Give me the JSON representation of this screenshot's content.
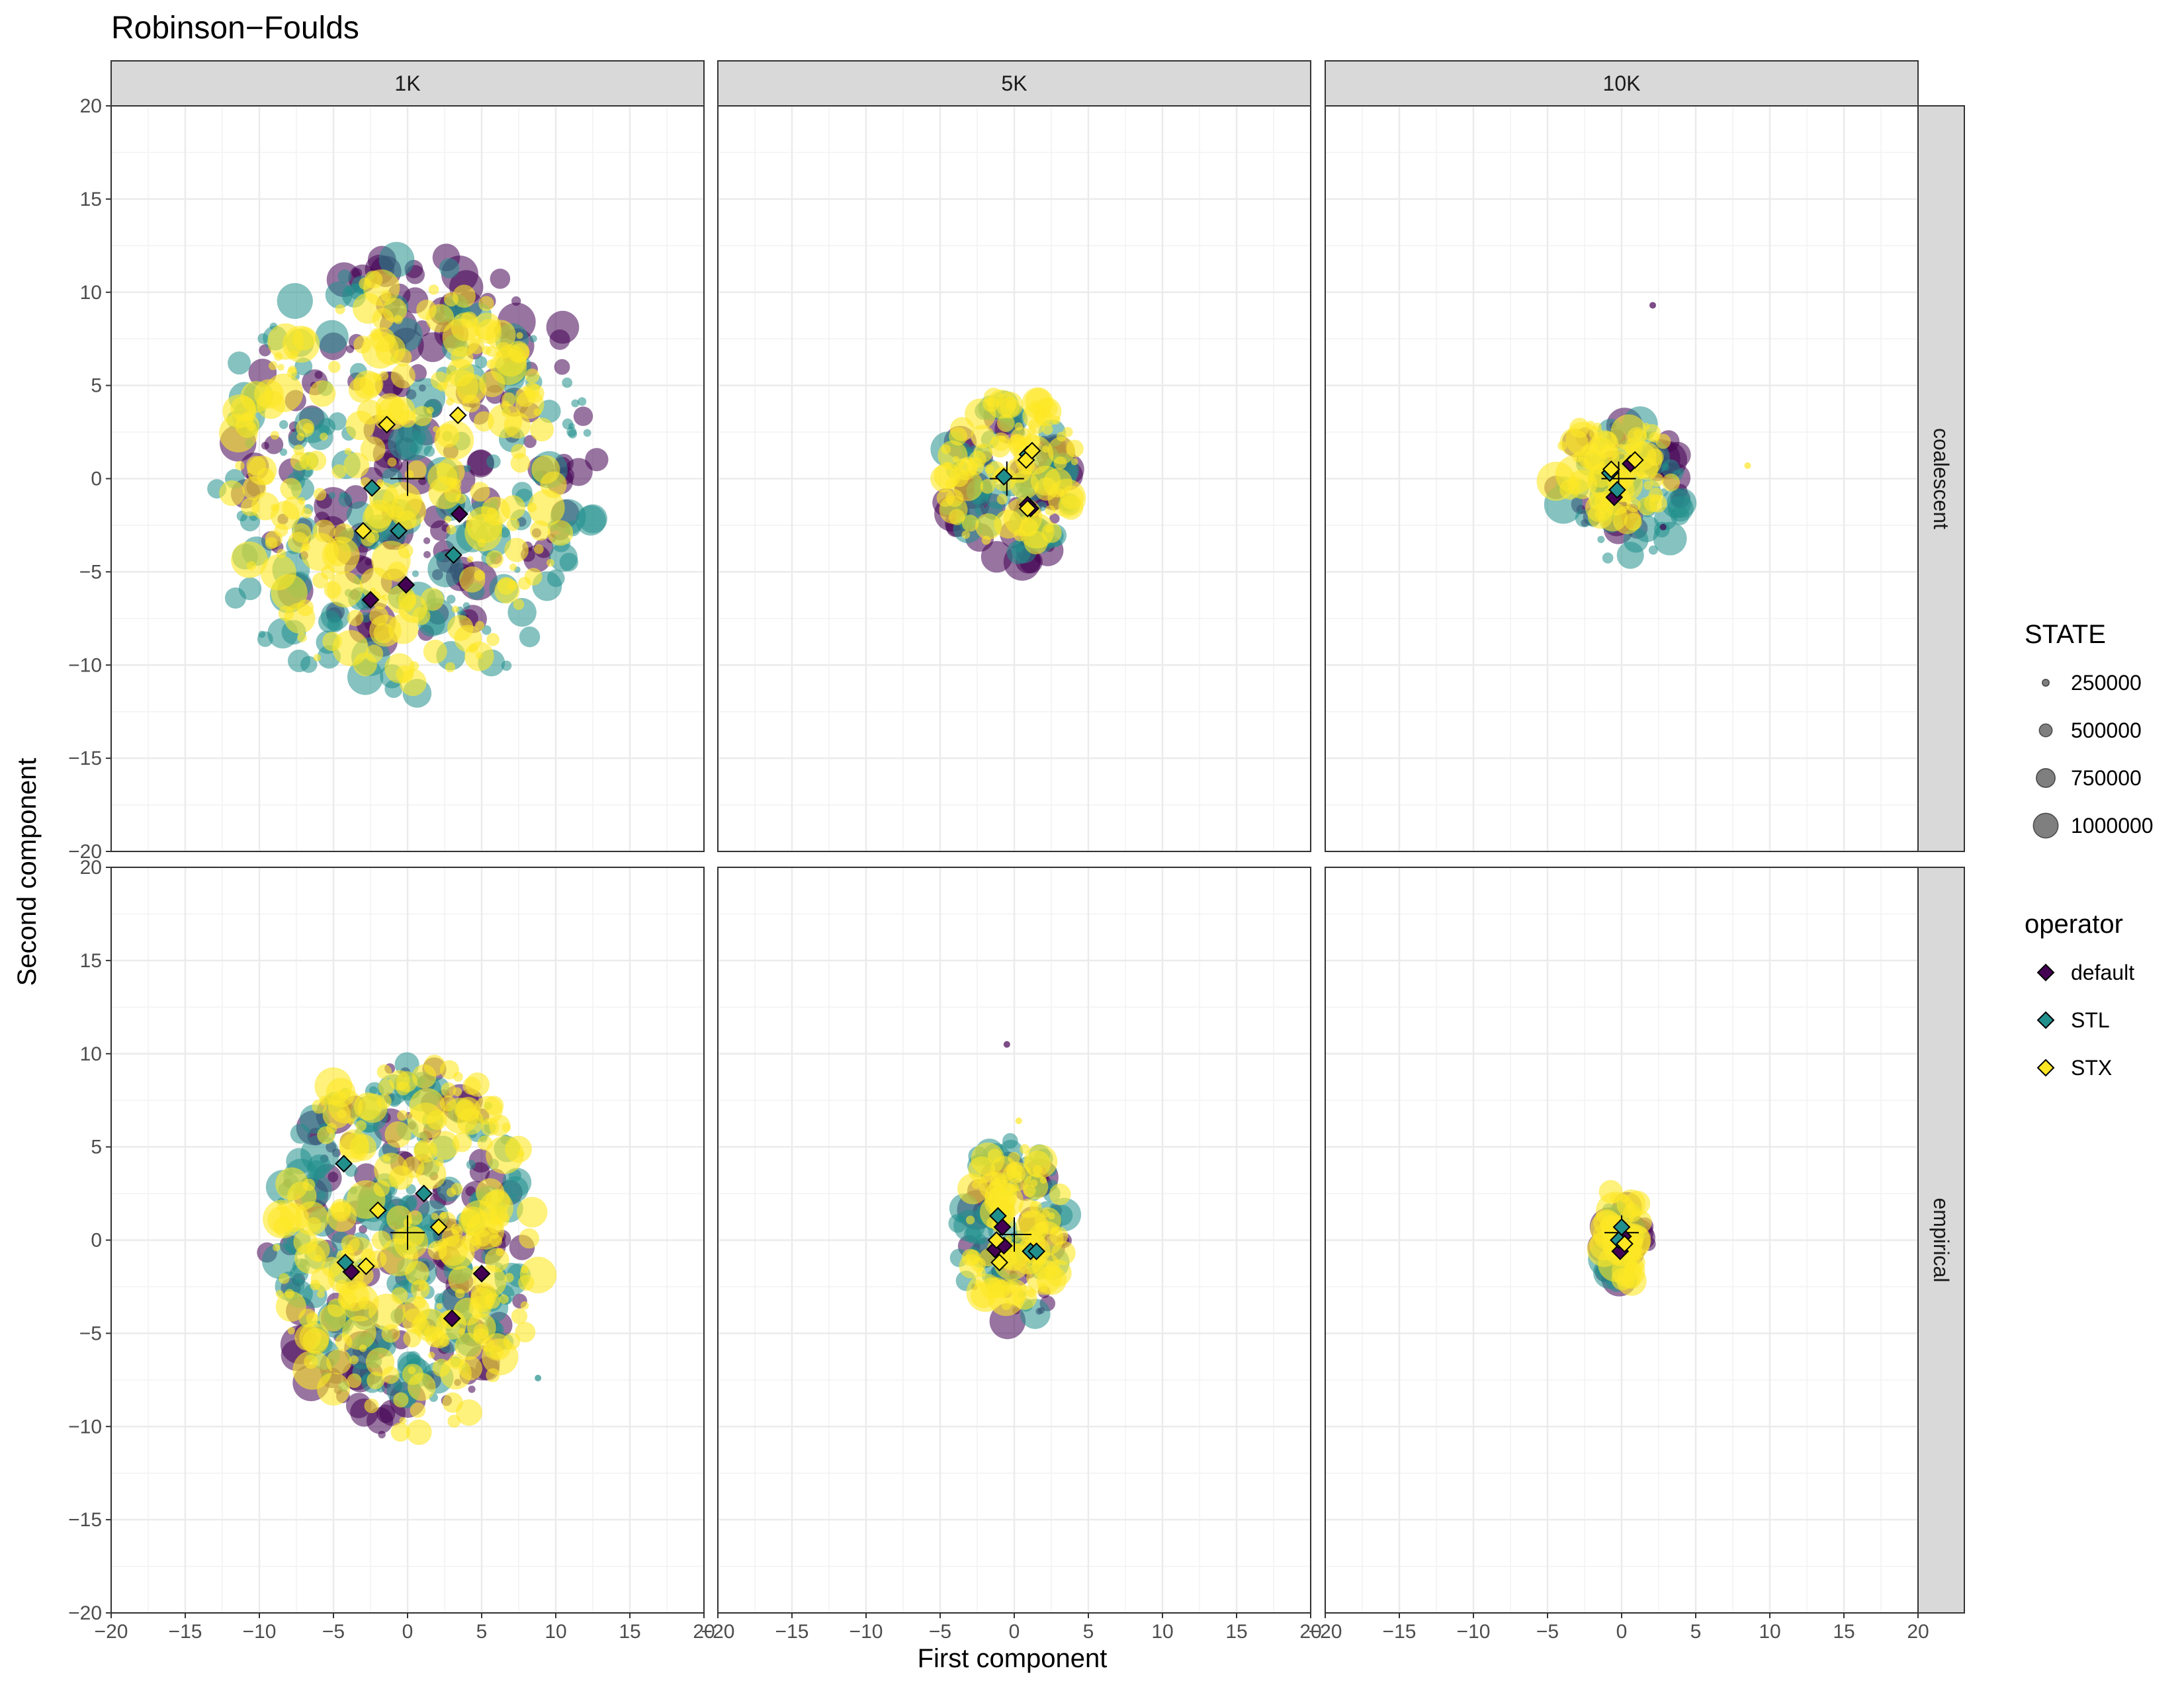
{
  "chart_data": {
    "type": "scatter",
    "title": "Robinson−Foulds",
    "xlabel": "First component",
    "ylabel": "Second component",
    "xlim": [
      -20,
      20
    ],
    "ylim": [
      -20,
      20
    ],
    "grid": true,
    "x_ticks": [
      -20,
      -15,
      -10,
      -5,
      0,
      5,
      10,
      15,
      20
    ],
    "y_ticks": [
      -20,
      -15,
      -10,
      -5,
      0,
      5,
      10,
      15,
      20
    ],
    "x_tick_labels": [
      "−20",
      "−15",
      "−10",
      "−5",
      "0",
      "5",
      "10",
      "15",
      "20"
    ],
    "y_tick_labels": [
      "−20",
      "−15",
      "−10",
      "−5",
      "0",
      "5",
      "10",
      "15",
      "20"
    ],
    "col_facets": [
      "1K",
      "5K",
      "10K"
    ],
    "row_facets": [
      "coalescent",
      "empirical"
    ],
    "colors": {
      "default": "#440154",
      "STL": "#21908C",
      "STX": "#FDE725"
    },
    "legend_position": "right",
    "size_legend": {
      "title": "STATE",
      "values": [
        250000,
        500000,
        750000,
        1000000
      ],
      "labels": [
        "250000",
        "500000",
        "750000",
        "1000000"
      ]
    },
    "color_legend": {
      "title": "operator",
      "entries": [
        "default",
        "STL",
        "STX"
      ]
    },
    "panels": [
      {
        "col": "1K",
        "row": "coalescent",
        "clouds": [
          {
            "operator": "default",
            "x_range": [
              -11.5,
              13
            ],
            "y_range": [
              -9,
              12.5
            ],
            "n": 170
          },
          {
            "operator": "STL",
            "x_range": [
              -14,
              13
            ],
            "y_range": [
              -12,
              12
            ],
            "n": 190
          },
          {
            "operator": "STX",
            "x_range": [
              -12,
              11
            ],
            "y_range": [
              -11,
              11
            ],
            "n": 240
          }
        ],
        "centroid": {
          "x": 0,
          "y": 0
        },
        "markers": [
          {
            "operator": "default",
            "x": -2.5,
            "y": -6.5
          },
          {
            "operator": "default",
            "x": -0.1,
            "y": -5.7
          },
          {
            "operator": "default",
            "x": 3.5,
            "y": -1.9
          },
          {
            "operator": "STL",
            "x": -2.4,
            "y": -0.5
          },
          {
            "operator": "STL",
            "x": -0.6,
            "y": -2.8
          },
          {
            "operator": "STL",
            "x": 3.1,
            "y": -4.1
          },
          {
            "operator": "STX",
            "x": -1.4,
            "y": 2.9
          },
          {
            "operator": "STX",
            "x": 3.4,
            "y": 3.4
          },
          {
            "operator": "STX",
            "x": -3.0,
            "y": -2.8
          }
        ]
      },
      {
        "col": "5K",
        "row": "coalescent",
        "clouds": [
          {
            "operator": "default",
            "x_range": [
              -5,
              4
            ],
            "y_range": [
              -5,
              4
            ],
            "n": 50
          },
          {
            "operator": "STL",
            "x_range": [
              -5,
              4
            ],
            "y_range": [
              -4.5,
              4
            ],
            "n": 60
          },
          {
            "operator": "STX",
            "x_range": [
              -5,
              4.5
            ],
            "y_range": [
              -4,
              4.5
            ],
            "n": 90
          }
        ],
        "centroid": {
          "x": -0.5,
          "y": 0
        },
        "markers": [
          {
            "operator": "default",
            "x": 0.9,
            "y": -1.4
          },
          {
            "operator": "default",
            "x": 1.1,
            "y": -1.6
          },
          {
            "operator": "STL",
            "x": -0.7,
            "y": 0.1
          },
          {
            "operator": "STL",
            "x": 0.9,
            "y": 1.3
          },
          {
            "operator": "STX",
            "x": 0.8,
            "y": 1.0
          },
          {
            "operator": "STX",
            "x": 1.2,
            "y": 1.5
          },
          {
            "operator": "STX",
            "x": 0.9,
            "y": -1.6
          }
        ],
        "outliers": []
      },
      {
        "col": "10K",
        "row": "coalescent",
        "clouds": [
          {
            "operator": "default",
            "x_range": [
              -4.5,
              4.5
            ],
            "y_range": [
              -3,
              3
            ],
            "n": 40
          },
          {
            "operator": "STL",
            "x_range": [
              -4,
              5
            ],
            "y_range": [
              -4.5,
              3
            ],
            "n": 45
          },
          {
            "operator": "STX",
            "x_range": [
              -4.5,
              3.5
            ],
            "y_range": [
              -3,
              3.5
            ],
            "n": 60
          }
        ],
        "centroid": {
          "x": -0.2,
          "y": 0
        },
        "markers": [
          {
            "operator": "default",
            "x": -0.5,
            "y": -1.0
          },
          {
            "operator": "default",
            "x": 0.6,
            "y": 0.8
          },
          {
            "operator": "STL",
            "x": -0.8,
            "y": 0.3
          },
          {
            "operator": "STL",
            "x": -0.3,
            "y": -0.6
          },
          {
            "operator": "STX",
            "x": 0.9,
            "y": 1.0
          },
          {
            "operator": "STX",
            "x": -0.7,
            "y": 0.5
          }
        ],
        "outliers": [
          {
            "operator": "default",
            "x": 2.1,
            "y": 9.3
          },
          {
            "operator": "STX",
            "x": 8.5,
            "y": 0.7
          },
          {
            "operator": "default",
            "x": 2.8,
            "y": -2.6
          }
        ]
      },
      {
        "col": "1K",
        "row": "empirical",
        "clouds": [
          {
            "operator": "default",
            "x_range": [
              -9.5,
              8
            ],
            "y_range": [
              -10.5,
              9.8
            ],
            "n": 150
          },
          {
            "operator": "STL",
            "x_range": [
              -9,
              8.5
            ],
            "y_range": [
              -9.5,
              9.5
            ],
            "n": 170
          },
          {
            "operator": "STX",
            "x_range": [
              -9,
              9
            ],
            "y_range": [
              -10.5,
              10
            ],
            "n": 230
          }
        ],
        "centroid": {
          "x": 0,
          "y": 0.4
        },
        "markers": [
          {
            "operator": "default",
            "x": -3.8,
            "y": -1.7
          },
          {
            "operator": "default",
            "x": 3.0,
            "y": -4.2
          },
          {
            "operator": "default",
            "x": 5.0,
            "y": -1.8
          },
          {
            "operator": "STL",
            "x": -4.3,
            "y": 4.1
          },
          {
            "operator": "STL",
            "x": 1.1,
            "y": 2.5
          },
          {
            "operator": "STL",
            "x": -4.2,
            "y": -1.2
          },
          {
            "operator": "STX",
            "x": -2.0,
            "y": 1.6
          },
          {
            "operator": "STX",
            "x": 2.1,
            "y": 0.7
          },
          {
            "operator": "STX",
            "x": -2.8,
            "y": -1.4
          }
        ],
        "outliers": [
          {
            "operator": "STL",
            "x": 8.8,
            "y": -7.4
          }
        ]
      },
      {
        "col": "5K",
        "row": "empirical",
        "clouds": [
          {
            "operator": "default",
            "x_range": [
              -3.5,
              3.5
            ],
            "y_range": [
              -4.5,
              4
            ],
            "n": 45
          },
          {
            "operator": "STL",
            "x_range": [
              -4,
              3.5
            ],
            "y_range": [
              -4.5,
              5.5
            ],
            "n": 55
          },
          {
            "operator": "STX",
            "x_range": [
              -3.5,
              3.5
            ],
            "y_range": [
              -4,
              5
            ],
            "n": 85
          }
        ],
        "centroid": {
          "x": 0,
          "y": 0.3
        },
        "markers": [
          {
            "operator": "default",
            "x": -0.8,
            "y": 0.7
          },
          {
            "operator": "default",
            "x": -1.3,
            "y": -0.5
          },
          {
            "operator": "default",
            "x": -0.7,
            "y": -0.3
          },
          {
            "operator": "STL",
            "x": -1.1,
            "y": 1.3
          },
          {
            "operator": "STL",
            "x": 1.1,
            "y": -0.6
          },
          {
            "operator": "STL",
            "x": 1.5,
            "y": -0.6
          },
          {
            "operator": "STX",
            "x": -1.2,
            "y": 0.0
          },
          {
            "operator": "STX",
            "x": -1.0,
            "y": -1.2
          }
        ],
        "outliers": [
          {
            "operator": "default",
            "x": -0.5,
            "y": 10.5
          },
          {
            "operator": "STX",
            "x": 0.3,
            "y": 6.4
          }
        ]
      },
      {
        "col": "10K",
        "row": "empirical",
        "clouds": [
          {
            "operator": "default",
            "x_range": [
              -1.5,
              2
            ],
            "y_range": [
              -3,
              2.5
            ],
            "n": 25
          },
          {
            "operator": "STL",
            "x_range": [
              -1.5,
              1.5
            ],
            "y_range": [
              -2.5,
              2.5
            ],
            "n": 25
          },
          {
            "operator": "STX",
            "x_range": [
              -1.5,
              1.5
            ],
            "y_range": [
              -2.5,
              3
            ],
            "n": 40
          }
        ],
        "centroid": {
          "x": 0,
          "y": 0.4
        },
        "markers": [
          {
            "operator": "default",
            "x": -0.1,
            "y": -0.6
          },
          {
            "operator": "default",
            "x": 0.1,
            "y": 0.2
          },
          {
            "operator": "STL",
            "x": 0.0,
            "y": 0.7
          },
          {
            "operator": "STL",
            "x": -0.2,
            "y": 0.0
          },
          {
            "operator": "STX",
            "x": 0.2,
            "y": -0.2
          }
        ],
        "outliers": []
      }
    ]
  }
}
